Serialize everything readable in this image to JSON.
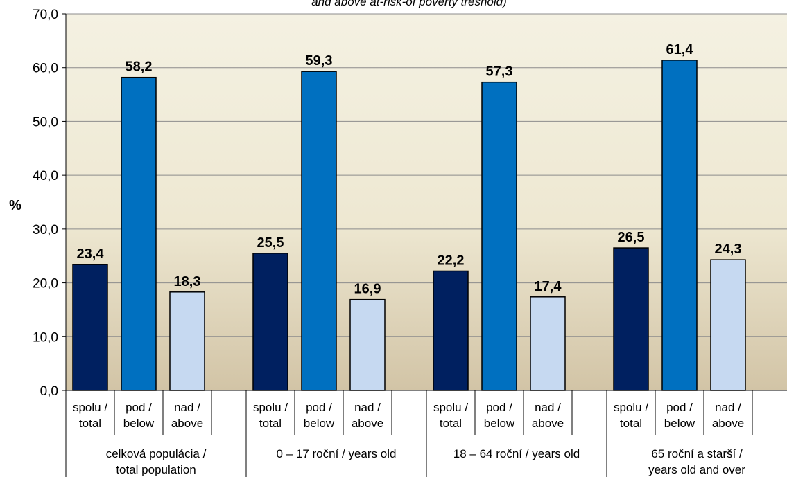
{
  "chart_data": {
    "type": "bar",
    "title": "and above at-risk-of poverty treshold)",
    "ylabel": "%",
    "ylim": [
      0,
      70
    ],
    "yticks": [
      "0,0",
      "10,0",
      "20,0",
      "30,0",
      "40,0",
      "50,0",
      "60,0",
      "70,0"
    ],
    "grid": true,
    "groups": [
      {
        "label_line1": "celková populácia /",
        "label_line2": "total population",
        "bars": [
          {
            "label_line1": "spolu /",
            "label_line2": "total",
            "value": 23.4,
            "value_label": "23,4",
            "color": "#002060"
          },
          {
            "label_line1": "pod /",
            "label_line2": "below",
            "value": 58.2,
            "value_label": "58,2",
            "color": "#0070C0"
          },
          {
            "label_line1": "nad /",
            "label_line2": "above",
            "value": 18.3,
            "value_label": "18,3",
            "color": "#C6D9F1"
          }
        ]
      },
      {
        "label_line1": "0 – 17 roční / years old",
        "label_line2": "",
        "bars": [
          {
            "label_line1": "spolu /",
            "label_line2": "total",
            "value": 25.5,
            "value_label": "25,5",
            "color": "#002060"
          },
          {
            "label_line1": "pod /",
            "label_line2": "below",
            "value": 59.3,
            "value_label": "59,3",
            "color": "#0070C0"
          },
          {
            "label_line1": "nad /",
            "label_line2": "above",
            "value": 16.9,
            "value_label": "16,9",
            "color": "#C6D9F1"
          }
        ]
      },
      {
        "label_line1": "18 – 64 roční / years old",
        "label_line2": "",
        "bars": [
          {
            "label_line1": "spolu /",
            "label_line2": "total",
            "value": 22.2,
            "value_label": "22,2",
            "color": "#002060"
          },
          {
            "label_line1": "pod /",
            "label_line2": "below",
            "value": 57.3,
            "value_label": "57,3",
            "color": "#0070C0"
          },
          {
            "label_line1": "nad /",
            "label_line2": "above",
            "value": 17.4,
            "value_label": "17,4",
            "color": "#C6D9F1"
          }
        ]
      },
      {
        "label_line1": "65 roční a starší /",
        "label_line2": "years old and over",
        "bars": [
          {
            "label_line1": "spolu /",
            "label_line2": "total",
            "value": 26.5,
            "value_label": "26,5",
            "color": "#002060"
          },
          {
            "label_line1": "pod /",
            "label_line2": "below",
            "value": 61.4,
            "value_label": "61,4",
            "color": "#0070C0"
          },
          {
            "label_line1": "nad /",
            "label_line2": "above",
            "value": 24.3,
            "value_label": "24,3",
            "color": "#C6D9F1"
          }
        ]
      }
    ]
  }
}
